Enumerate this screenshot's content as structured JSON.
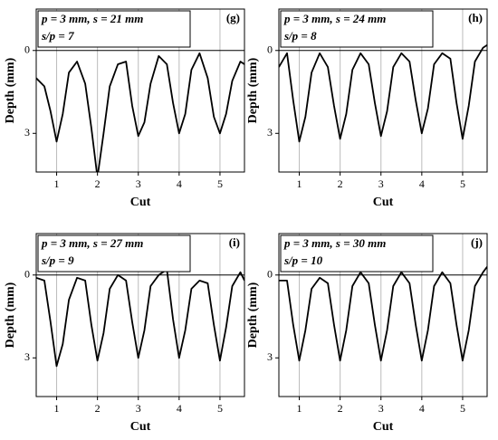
{
  "chart_data": [
    {
      "type": "line",
      "panel_label": "(g)",
      "annotation_lines": [
        "p = 3 mm, s = 21 mm",
        "s/p = 7"
      ],
      "xlabel": "Cut",
      "ylabel": "Depth (mm)",
      "color": "#000000",
      "x": [
        0.5,
        0.7,
        0.85,
        1.0,
        1.15,
        1.3,
        1.5,
        1.7,
        1.85,
        2.0,
        2.15,
        2.3,
        2.5,
        2.7,
        2.85,
        3.0,
        3.15,
        3.3,
        3.5,
        3.7,
        3.85,
        4.0,
        4.15,
        4.3,
        4.5,
        4.7,
        4.85,
        5.0,
        5.15,
        5.3,
        5.5,
        5.6
      ],
      "values": [
        1.0,
        1.3,
        2.2,
        3.3,
        2.3,
        0.8,
        0.4,
        1.2,
        2.8,
        4.6,
        3.0,
        1.3,
        0.5,
        0.4,
        2.0,
        3.1,
        2.6,
        1.2,
        0.2,
        0.5,
        1.9,
        3.0,
        2.3,
        0.7,
        0.1,
        1.0,
        2.4,
        3.0,
        2.3,
        1.1,
        0.4,
        0.5
      ],
      "xlim": [
        0.5,
        5.6
      ],
      "ylim": [
        -1.5,
        4.4
      ],
      "y_inverted": true,
      "xticks": [
        1,
        2,
        3,
        4,
        5
      ],
      "yticks": [
        0,
        3
      ],
      "grid": true,
      "reference_line": 0
    },
    {
      "type": "line",
      "panel_label": "(h)",
      "annotation_lines": [
        "p = 3 mm, s = 24 mm",
        "s/p = 8"
      ],
      "xlabel": "Cut",
      "ylabel": "Depth (mm)",
      "color": "#000000",
      "x": [
        0.5,
        0.7,
        0.85,
        1.0,
        1.15,
        1.3,
        1.5,
        1.7,
        1.85,
        2.0,
        2.15,
        2.3,
        2.5,
        2.7,
        2.85,
        3.0,
        3.15,
        3.3,
        3.5,
        3.7,
        3.85,
        4.0,
        4.15,
        4.3,
        4.5,
        4.7,
        4.85,
        5.0,
        5.15,
        5.3,
        5.5,
        5.6
      ],
      "values": [
        0.6,
        0.1,
        1.8,
        3.3,
        2.4,
        0.8,
        0.1,
        0.6,
        2.0,
        3.2,
        2.3,
        0.7,
        0.1,
        0.5,
        1.9,
        3.1,
        2.2,
        0.6,
        0.1,
        0.4,
        1.8,
        3.0,
        2.1,
        0.5,
        0.1,
        0.3,
        1.9,
        3.2,
        2.0,
        0.4,
        -0.1,
        -0.2
      ],
      "xlim": [
        0.5,
        5.6
      ],
      "ylim": [
        -1.5,
        4.4
      ],
      "y_inverted": true,
      "xticks": [
        1,
        2,
        3,
        4,
        5
      ],
      "yticks": [
        0,
        3
      ],
      "grid": true,
      "reference_line": 0
    },
    {
      "type": "line",
      "panel_label": "(i)",
      "annotation_lines": [
        "p = 3 mm, s = 27 mm",
        "s/p = 9"
      ],
      "xlabel": "Cut",
      "ylabel": "Depth (mm)",
      "color": "#000000",
      "x": [
        0.5,
        0.7,
        0.85,
        1.0,
        1.15,
        1.3,
        1.5,
        1.7,
        1.85,
        2.0,
        2.15,
        2.3,
        2.5,
        2.7,
        2.85,
        3.0,
        3.15,
        3.3,
        3.5,
        3.7,
        3.85,
        4.0,
        4.15,
        4.3,
        4.5,
        4.7,
        4.85,
        5.0,
        5.15,
        5.3,
        5.5,
        5.6
      ],
      "values": [
        0.1,
        0.2,
        1.7,
        3.3,
        2.5,
        0.9,
        0.1,
        0.2,
        1.8,
        3.1,
        2.1,
        0.5,
        0.0,
        0.2,
        1.7,
        3.0,
        2.0,
        0.4,
        0.0,
        -0.2,
        1.6,
        3.0,
        2.0,
        0.5,
        0.2,
        0.3,
        1.8,
        3.1,
        1.9,
        0.4,
        -0.1,
        0.2
      ],
      "xlim": [
        0.5,
        5.6
      ],
      "ylim": [
        -1.5,
        4.4
      ],
      "y_inverted": true,
      "xticks": [
        1,
        2,
        3,
        4,
        5
      ],
      "yticks": [
        0,
        3
      ],
      "grid": true,
      "reference_line": 0
    },
    {
      "type": "line",
      "panel_label": "(j)",
      "annotation_lines": [
        "p = 3 mm, s = 30 mm",
        "s/p = 10"
      ],
      "xlabel": "Cut",
      "ylabel": "Depth (mm)",
      "color": "#000000",
      "x": [
        0.5,
        0.7,
        0.85,
        1.0,
        1.15,
        1.3,
        1.5,
        1.7,
        1.85,
        2.0,
        2.15,
        2.3,
        2.5,
        2.7,
        2.85,
        3.0,
        3.15,
        3.3,
        3.5,
        3.7,
        3.85,
        4.0,
        4.15,
        4.3,
        4.5,
        4.7,
        4.85,
        5.0,
        5.15,
        5.3,
        5.5,
        5.6
      ],
      "values": [
        0.2,
        0.2,
        1.8,
        3.1,
        2.0,
        0.5,
        0.1,
        0.3,
        1.8,
        3.1,
        2.0,
        0.4,
        -0.1,
        0.3,
        1.8,
        3.1,
        2.0,
        0.4,
        -0.1,
        0.3,
        1.8,
        3.1,
        2.0,
        0.4,
        -0.1,
        0.3,
        1.8,
        3.1,
        2.0,
        0.4,
        -0.1,
        -0.3
      ],
      "xlim": [
        0.5,
        5.6
      ],
      "ylim": [
        -1.5,
        4.4
      ],
      "y_inverted": true,
      "xticks": [
        1,
        2,
        3,
        4,
        5
      ],
      "yticks": [
        0,
        3
      ],
      "grid": true,
      "reference_line": 0
    }
  ]
}
